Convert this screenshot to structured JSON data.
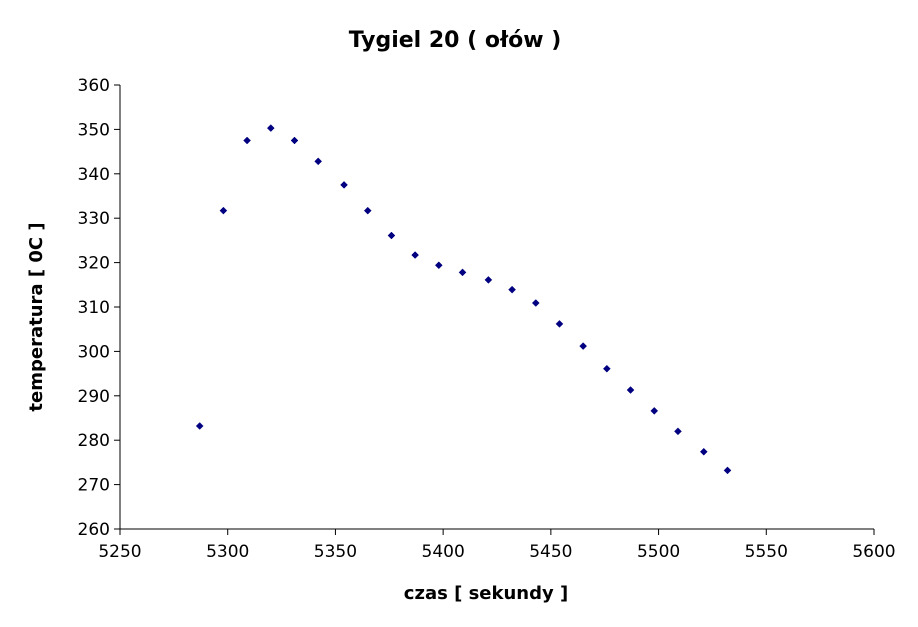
{
  "chart_data": {
    "type": "scatter",
    "title": "Tygiel 20 ( ołów )",
    "xlabel": "czas [ sekundy ]",
    "ylabel": "temperatura [ 0C ]",
    "xlim": [
      5250,
      5600
    ],
    "ylim": [
      260,
      360
    ],
    "xticks": [
      5250,
      5300,
      5350,
      5400,
      5450,
      5500,
      5550,
      5600
    ],
    "yticks": [
      260,
      270,
      280,
      290,
      300,
      310,
      320,
      330,
      340,
      350,
      360
    ],
    "grid": false,
    "marker_color": "#000080",
    "series": [
      {
        "x": [
          5287,
          5298,
          5309,
          5320,
          5331,
          5342,
          5354,
          5365,
          5376,
          5387,
          5398,
          5409,
          5421,
          5432,
          5443,
          5454,
          5465,
          5476,
          5487,
          5498,
          5509,
          5521,
          5532
        ],
        "y": [
          283.2,
          331.7,
          347.5,
          350.3,
          347.5,
          342.8,
          337.5,
          331.7,
          326.1,
          321.7,
          319.4,
          317.8,
          316.1,
          313.9,
          310.9,
          306.2,
          301.2,
          296.1,
          291.3,
          286.6,
          282.0,
          277.4,
          273.2
        ]
      }
    ]
  }
}
